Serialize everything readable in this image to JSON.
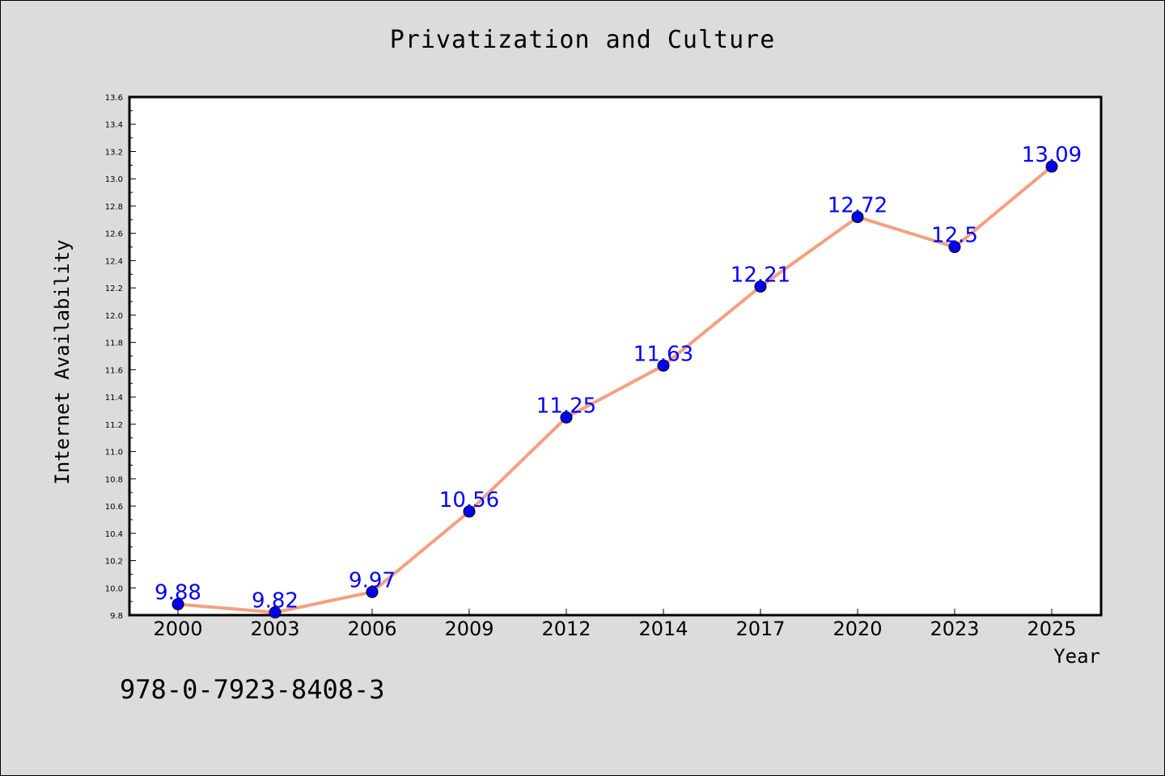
{
  "chart_data": {
    "type": "line",
    "title": "Privatization and Culture",
    "xlabel": "Year",
    "ylabel": "Internet Availability",
    "categories": [
      "2000",
      "2003",
      "2006",
      "2009",
      "2012",
      "2014",
      "2017",
      "2020",
      "2023",
      "2025"
    ],
    "series": [
      {
        "values": [
          9.88,
          9.82,
          9.97,
          10.56,
          11.25,
          11.63,
          12.21,
          12.72,
          12.5,
          13.09
        ],
        "data_labels": [
          "9.88",
          "9.82",
          "9.97",
          "10.56",
          "11.25",
          "11.63",
          "12.21",
          "12.72",
          "12.5",
          "13.09"
        ],
        "line_color": "#f4a07f",
        "marker_color": "#0000ee"
      }
    ],
    "ylim": [
      9.8,
      13.6
    ],
    "yticks": [
      "9.8",
      "10.0",
      "10.2",
      "10.4",
      "10.6",
      "10.8",
      "11.0",
      "11.2",
      "11.4",
      "11.6",
      "11.8",
      "12.0",
      "12.2",
      "12.4",
      "12.6",
      "12.8",
      "13.0",
      "13.2",
      "13.4",
      "13.6"
    ],
    "grid": false,
    "label_color": "#0000ff"
  },
  "footer": {
    "identifier": "978-0-7923-8408-3"
  }
}
